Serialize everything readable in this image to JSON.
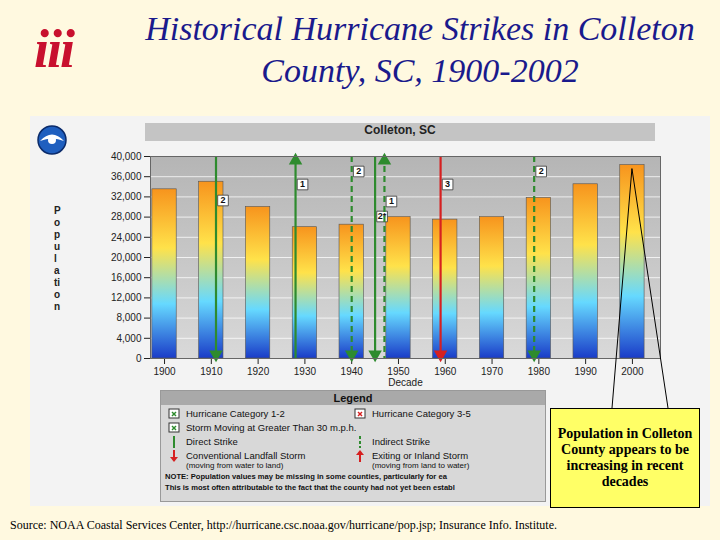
{
  "logo": "iii",
  "title": "Historical Hurricane Strikes in Colleton County, SC, 1900-2002",
  "callout": "Population in Colleton County appears to be increasing in recent decades",
  "source": "Source: NOAA Coastal Services Center, http://hurricane.csc.noaa.gov/hurricane/pop.jsp; Insurance Info. Institute.",
  "chart_data": {
    "type": "bar",
    "title": "Colleton, SC",
    "x_label": "Decade",
    "y_label": "Population",
    "x": [
      1900,
      1910,
      1920,
      1930,
      1940,
      1950,
      1960,
      1970,
      1980,
      1990,
      2000
    ],
    "values": [
      33500,
      35000,
      30000,
      26000,
      26500,
      28000,
      27500,
      28000,
      31800,
      34500,
      38300
    ],
    "color": "#f7941d",
    "xlim": [
      1897,
      2006
    ],
    "xticks": [
      1900,
      1910,
      1920,
      1930,
      1940,
      1950,
      1960,
      1970,
      1980,
      1990,
      2000
    ],
    "ylim": [
      0,
      40000
    ],
    "yticks": [
      0,
      {
        "value": 4000,
        "label": "4,000"
      },
      {
        "value": 8000,
        "label": "8,000"
      },
      {
        "value": 12000,
        "label": "12,000"
      },
      {
        "value": 16000,
        "label": "16,000"
      },
      {
        "value": 20000,
        "label": "20,000"
      },
      {
        "value": 24000,
        "label": "24,000"
      },
      {
        "value": 28000,
        "label": "28,000"
      },
      {
        "value": 32000,
        "label": "32,000"
      },
      {
        "value": 36000,
        "label": "36,000"
      },
      {
        "value": 40000,
        "label": "40,000"
      }
    ],
    "grid": true,
    "storms": [
      {
        "year": 1911,
        "label": "2",
        "category": 2,
        "color": "#2e8b2e",
        "strike": "direct",
        "motion": "landfall"
      },
      {
        "year": 1928,
        "label": "1",
        "category": 1,
        "color": "#2e8b2e",
        "strike": "direct",
        "motion": "exiting"
      },
      {
        "year": 1940,
        "label": "2",
        "category": 2,
        "color": "#2e8b2e",
        "strike": "indirect",
        "motion": "landfall"
      },
      {
        "year": 1945,
        "label": "2*",
        "category": 2,
        "color": "#2e8b2e",
        "strike": "direct",
        "motion": "landfall"
      },
      {
        "year": 1947,
        "label": "1",
        "category": 1,
        "color": "#2e8b2e",
        "strike": "indirect",
        "motion": "exiting"
      },
      {
        "year": 1959,
        "label": "3",
        "category": 3,
        "color": "#d62020",
        "strike": "direct",
        "motion": "landfall"
      },
      {
        "year": 1979,
        "label": "2",
        "category": 2,
        "color": "#2e8b2e",
        "strike": "indirect",
        "motion": "landfall"
      }
    ],
    "legend_box": {
      "title": "Legend",
      "items": [
        {
          "text": "Hurricane Category 1-2",
          "marker": "box",
          "color": "#2e8b2e"
        },
        {
          "text": "Hurricane Category 3-5",
          "marker": "box",
          "color": "#d62020"
        },
        {
          "text": "Storm Moving at Greater Than 30 m.p.h.",
          "marker": "box",
          "color": "#2e8b2e"
        },
        {
          "text": "Direct Strike",
          "marker": "solid",
          "color": "#2e8b2e"
        },
        {
          "text": "Indirect Strike",
          "marker": "dashed",
          "color": "#2e8b2e"
        },
        {
          "text": "Conventional Landfall Storm",
          "subtext": "(moving from water to land)",
          "marker": "down",
          "color": "#d62020"
        },
        {
          "text": "Exiting or Inland Storm",
          "subtext": "(moving from land to water)",
          "marker": "up",
          "color": "#d62020"
        }
      ],
      "note": [
        "NOTE: Population values may be missing in some counties, particularly for ea",
        "This is most often attributable to the fact that the county had not yet been establ"
      ]
    }
  }
}
